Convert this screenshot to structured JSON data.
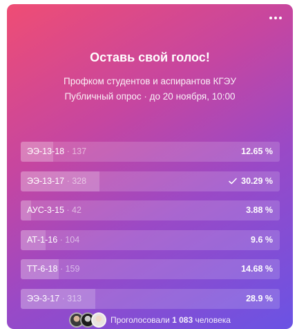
{
  "poll": {
    "title": "Оставь свой голос!",
    "author": "Профком студентов и аспирантов КГЭУ",
    "meta": "Публичный опрос · до 20 ноября, 10:00",
    "options": [
      {
        "label": "ЭЭ-13-18",
        "count": "· 137",
        "percent": "12.65 %",
        "share": 12.65,
        "voted": false
      },
      {
        "label": "ЭЭ-13-17",
        "count": "· 328",
        "percent": "30.29 %",
        "share": 30.29,
        "voted": true
      },
      {
        "label": "АУС-3-15",
        "count": "· 42",
        "percent": "3.88 %",
        "share": 3.88,
        "voted": false
      },
      {
        "label": "АТ-1-16",
        "count": "· 104",
        "percent": "9.6 %",
        "share": 9.6,
        "voted": false
      },
      {
        "label": "ТТ-6-18",
        "count": "· 159",
        "percent": "14.68 %",
        "share": 14.68,
        "voted": false
      },
      {
        "label": "ЭЭ-3-17",
        "count": "· 313",
        "percent": "28.9 %",
        "share": 28.9,
        "voted": false
      }
    ],
    "voters_prefix": "Проголосовали",
    "voters_count": "1 083",
    "voters_suffix": "человека"
  },
  "icons": {
    "menu": "more-dots-icon",
    "check": "checkmark-icon"
  }
}
